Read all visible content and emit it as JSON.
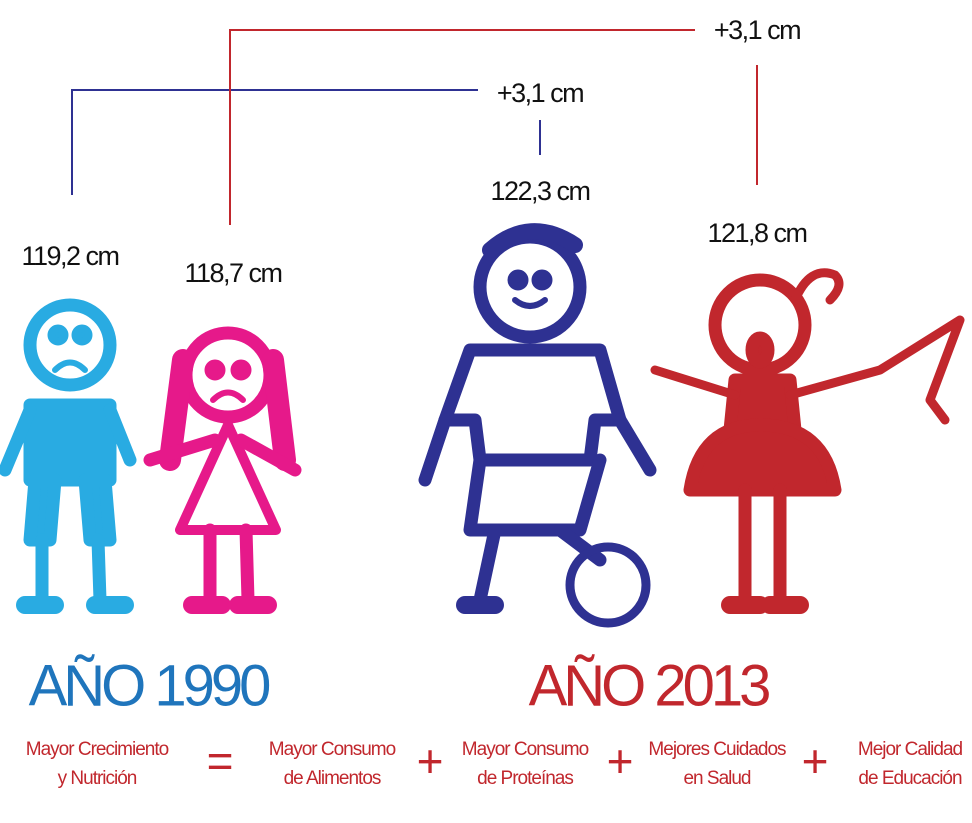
{
  "comparisons": [
    {
      "label": "+3,1 cm"
    },
    {
      "label": "+3,1 cm"
    }
  ],
  "heights": {
    "boy_1990": "119,2 cm",
    "girl_1990": "118,7 cm",
    "boy_2013": "122,3 cm",
    "girl_2013": "121,8 cm"
  },
  "years": {
    "left": "AÑO 1990",
    "right": "AÑO 2013"
  },
  "equation": {
    "result": [
      "Mayor Crecimiento",
      "y Nutrición"
    ],
    "equals": "=",
    "terms": [
      [
        "Mayor Consumo",
        "de Alimentos"
      ],
      [
        "Mayor Consumo",
        "de Proteínas"
      ],
      [
        "Mejores Cuidados",
        "en Salud"
      ],
      [
        "Mejor Calidad",
        "de Educación"
      ]
    ],
    "plus": [
      "+",
      "+",
      "+"
    ]
  }
}
